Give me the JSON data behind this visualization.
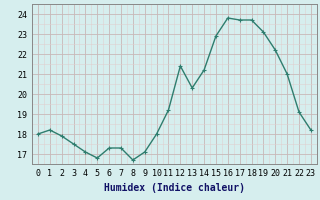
{
  "x": [
    0,
    1,
    2,
    3,
    4,
    5,
    6,
    7,
    8,
    9,
    10,
    11,
    12,
    13,
    14,
    15,
    16,
    17,
    18,
    19,
    20,
    21,
    22,
    23
  ],
  "y": [
    18.0,
    18.2,
    17.9,
    17.5,
    17.1,
    16.8,
    17.3,
    17.3,
    16.7,
    17.1,
    18.0,
    19.2,
    21.4,
    20.3,
    21.2,
    22.9,
    23.8,
    23.7,
    23.7,
    23.1,
    22.2,
    21.0,
    19.1,
    18.2
  ],
  "line_color": "#2e7d6e",
  "marker": "+",
  "markersize": 3,
  "linewidth": 1.0,
  "bg_color": "#d6eeee",
  "grid_color_major": "#c8b8b8",
  "grid_color_minor": "#e0d0d0",
  "xlabel": "Humidex (Indice chaleur)",
  "xlabel_fontsize": 7,
  "tick_fontsize": 6,
  "ylim": [
    16.5,
    24.5
  ],
  "yticks": [
    17,
    18,
    19,
    20,
    21,
    22,
    23,
    24
  ],
  "xlim": [
    -0.5,
    23.5
  ],
  "xticks": [
    0,
    1,
    2,
    3,
    4,
    5,
    6,
    7,
    8,
    9,
    10,
    11,
    12,
    13,
    14,
    15,
    16,
    17,
    18,
    19,
    20,
    21,
    22,
    23
  ]
}
